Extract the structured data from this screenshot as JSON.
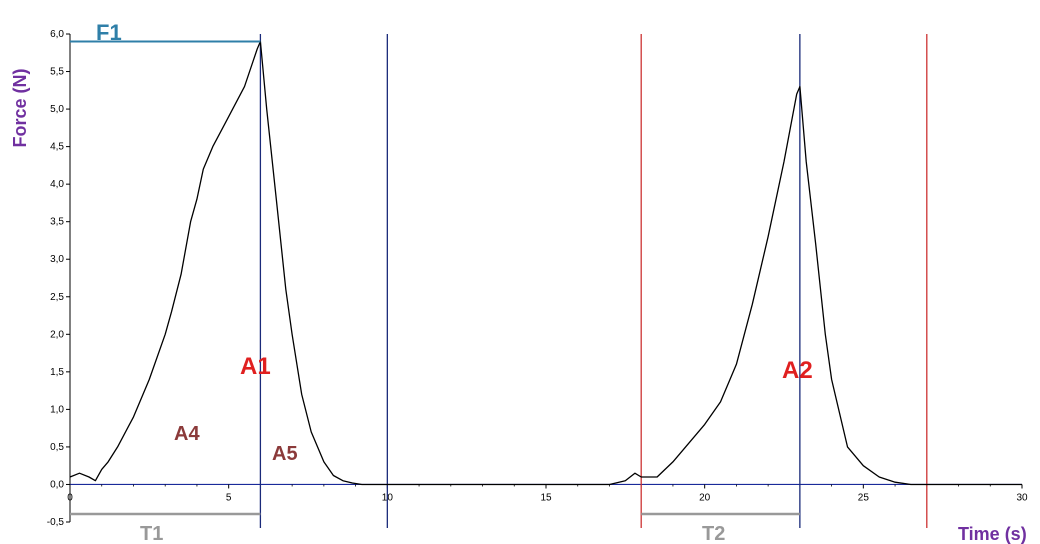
{
  "chart_data": {
    "type": "line",
    "ylabel": "Force (N)",
    "xlabel": "Time (s)",
    "xlim": [
      0,
      30
    ],
    "ylim": [
      -0.5,
      6.0
    ],
    "x_ticks": [
      {
        "value": 0,
        "label": "0"
      },
      {
        "value": 5,
        "label": "5"
      },
      {
        "value": 10,
        "label": "10"
      },
      {
        "value": 15,
        "label": "15"
      },
      {
        "value": 20,
        "label": "20"
      },
      {
        "value": 25,
        "label": "25"
      },
      {
        "value": 30,
        "label": "30"
      }
    ],
    "y_ticks": [
      {
        "value": -0.5,
        "label": "-0,5"
      },
      {
        "value": 0.0,
        "label": "0,0"
      },
      {
        "value": 0.5,
        "label": "0,5"
      },
      {
        "value": 1.0,
        "label": "1,0"
      },
      {
        "value": 1.5,
        "label": "1,5"
      },
      {
        "value": 2.0,
        "label": "2,0"
      },
      {
        "value": 2.5,
        "label": "2,5"
      },
      {
        "value": 3.0,
        "label": "3,0"
      },
      {
        "value": 3.5,
        "label": "3,5"
      },
      {
        "value": 4.0,
        "label": "4,0"
      },
      {
        "value": 4.5,
        "label": "4,5"
      },
      {
        "value": 5.0,
        "label": "5,0"
      },
      {
        "value": 5.5,
        "label": "5,5"
      },
      {
        "value": 6.0,
        "label": "6,0"
      }
    ],
    "series": [
      {
        "color": "#000000",
        "x": [
          0,
          0.3,
          0.6,
          0.8,
          1.0,
          1.2,
          1.5,
          2.0,
          2.5,
          3.0,
          3.2,
          3.5,
          3.8,
          4.0,
          4.2,
          4.5,
          5.0,
          5.5,
          5.9,
          6.0,
          6.2,
          6.5,
          6.8,
          7.0,
          7.3,
          7.6,
          8.0,
          8.3,
          8.6,
          8.9,
          9.2,
          9.5,
          10.0,
          11,
          12,
          13,
          14,
          15,
          16,
          17,
          17.5,
          17.8,
          18.0,
          18.5,
          19.0,
          19.5,
          20.0,
          20.5,
          21.0,
          21.5,
          22.0,
          22.5,
          22.9,
          23.0,
          23.2,
          23.5,
          23.8,
          24.0,
          24.5,
          25.0,
          25.5,
          26.0,
          26.5,
          27,
          28,
          29,
          30
        ],
        "y": [
          0.1,
          0.15,
          0.1,
          0.05,
          0.2,
          0.3,
          0.5,
          0.9,
          1.4,
          2.0,
          2.3,
          2.8,
          3.5,
          3.8,
          4.2,
          4.5,
          4.9,
          5.3,
          5.8,
          5.9,
          5.0,
          3.8,
          2.6,
          2.0,
          1.2,
          0.7,
          0.3,
          0.12,
          0.05,
          0.02,
          0.0,
          0.0,
          0.0,
          0.0,
          0.0,
          0.0,
          0.0,
          0.0,
          0.0,
          0.0,
          0.05,
          0.15,
          0.1,
          0.1,
          0.3,
          0.55,
          0.8,
          1.1,
          1.6,
          2.4,
          3.3,
          4.3,
          5.2,
          5.3,
          4.3,
          3.2,
          2.0,
          1.4,
          0.5,
          0.25,
          0.1,
          0.03,
          0.0,
          0.0,
          0.0,
          0.0,
          0.0
        ]
      }
    ],
    "annotations": {
      "F1": {
        "label": "F1",
        "y": 5.9,
        "x_start": 0,
        "x_end": 6.0,
        "color": "#2f7fa8"
      },
      "T1": {
        "label": "T1",
        "x_start": 0,
        "x_end": 6.0,
        "color": "#999999"
      },
      "T2": {
        "label": "T2",
        "x_start": 18.0,
        "x_end": 23.0,
        "color": "#999999"
      },
      "A1": {
        "label": "A1",
        "color": "#e02020"
      },
      "A2": {
        "label": "A2",
        "color": "#e02020"
      },
      "A4": {
        "label": "A4",
        "color": "#8b3a3a"
      },
      "A5": {
        "label": "A5",
        "color": "#8b3a3a"
      },
      "blue_lines": [
        6.0,
        10.0,
        23.0
      ],
      "red_lines": [
        18.0,
        27.0
      ],
      "blue_line_color": "#1a2a7a",
      "red_line_color": "#cc3333"
    },
    "grid": false,
    "axis_label_color": "#7030a0",
    "axis_zero_color": "#1a2a9a"
  }
}
